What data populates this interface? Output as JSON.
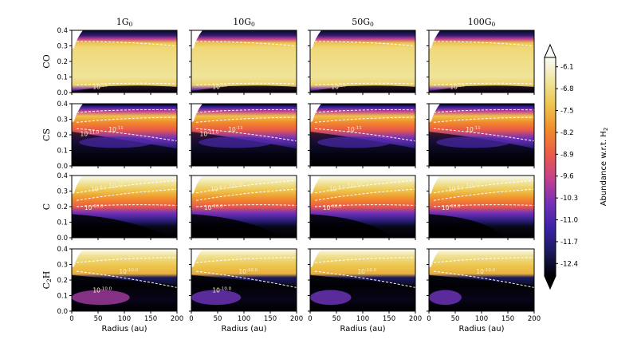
{
  "chart_data": {
    "type": "heatmap",
    "title": "",
    "columns": [
      {
        "label": "1G",
        "sub": "0"
      },
      {
        "label": "10G",
        "sub": "0"
      },
      {
        "label": "50G",
        "sub": "0"
      },
      {
        "label": "100G",
        "sub": "0"
      }
    ],
    "rows": [
      {
        "label": "CO",
        "sub": "",
        "field": [
          [
            -6.3,
            -6.3,
            -6.3,
            -6.3,
            -6.3,
            -6.3,
            -6.3,
            -6.3,
            -6.3,
            -6.3
          ],
          [
            -6.2,
            -6.2,
            -6.3,
            -6.3,
            -6.3,
            -6.3,
            -6.3,
            -6.3,
            -6.3,
            -6.3
          ],
          [
            -12.5,
            -6.4,
            -6.4,
            -6.4,
            -6.4,
            -6.4,
            -6.4,
            -6.4,
            -6.4,
            -6.4
          ]
        ],
        "contours": [
          {
            "label": "10^-10",
            "at": [
              0.2,
              0.06
            ]
          }
        ]
      },
      {
        "label": "CS",
        "sub": "",
        "contours": [
          {
            "label": "10^-11",
            "at": [
              0.35,
              0.55
            ]
          },
          {
            "label": "10^-11.0",
            "at": [
              0.08,
              0.48
            ]
          }
        ]
      },
      {
        "label": "C",
        "sub": "",
        "contours": [
          {
            "label": "10^-8.0",
            "at": [
              0.18,
              0.75
            ]
          },
          {
            "label": "10^-10",
            "at": [
              0.35,
              0.8
            ]
          },
          {
            "label": "10^-10.0",
            "at": [
              0.12,
              0.45
            ]
          }
        ]
      },
      {
        "label": "C",
        "sub": "2",
        "suffix": "H",
        "contours": [
          {
            "label": "10^-10.0",
            "at": [
              0.45,
              0.6
            ]
          },
          {
            "label": "10^-10.0",
            "at": [
              0.2,
              0.3
            ]
          }
        ]
      }
    ],
    "x_axis": {
      "label": "Radius (au)",
      "ticks": [
        "0",
        "50",
        "100",
        "150",
        "200"
      ],
      "range": [
        0,
        200
      ]
    },
    "y_axis": {
      "ticks": [
        "0.0",
        "0.1",
        "0.2",
        "0.3",
        "0.4"
      ],
      "range": [
        0.0,
        0.4
      ]
    },
    "colorbar": {
      "label": "Abundance w.r.t. H",
      "label_sub": "2",
      "ticks": [
        "-6.1",
        "-6.8",
        "-7.5",
        "-8.2",
        "-8.9",
        "-9.6",
        "-10.3",
        "-11.0",
        "-11.7",
        "-12.4"
      ],
      "range": [
        -12.8,
        -5.8
      ],
      "colormap": "CMRmap",
      "stops": [
        "#000000",
        "#1b1a5e",
        "#3b22a8",
        "#7530b8",
        "#c4408e",
        "#ea5a4a",
        "#f18a2a",
        "#edc34a",
        "#efe49a",
        "#fbfbf7"
      ]
    }
  }
}
